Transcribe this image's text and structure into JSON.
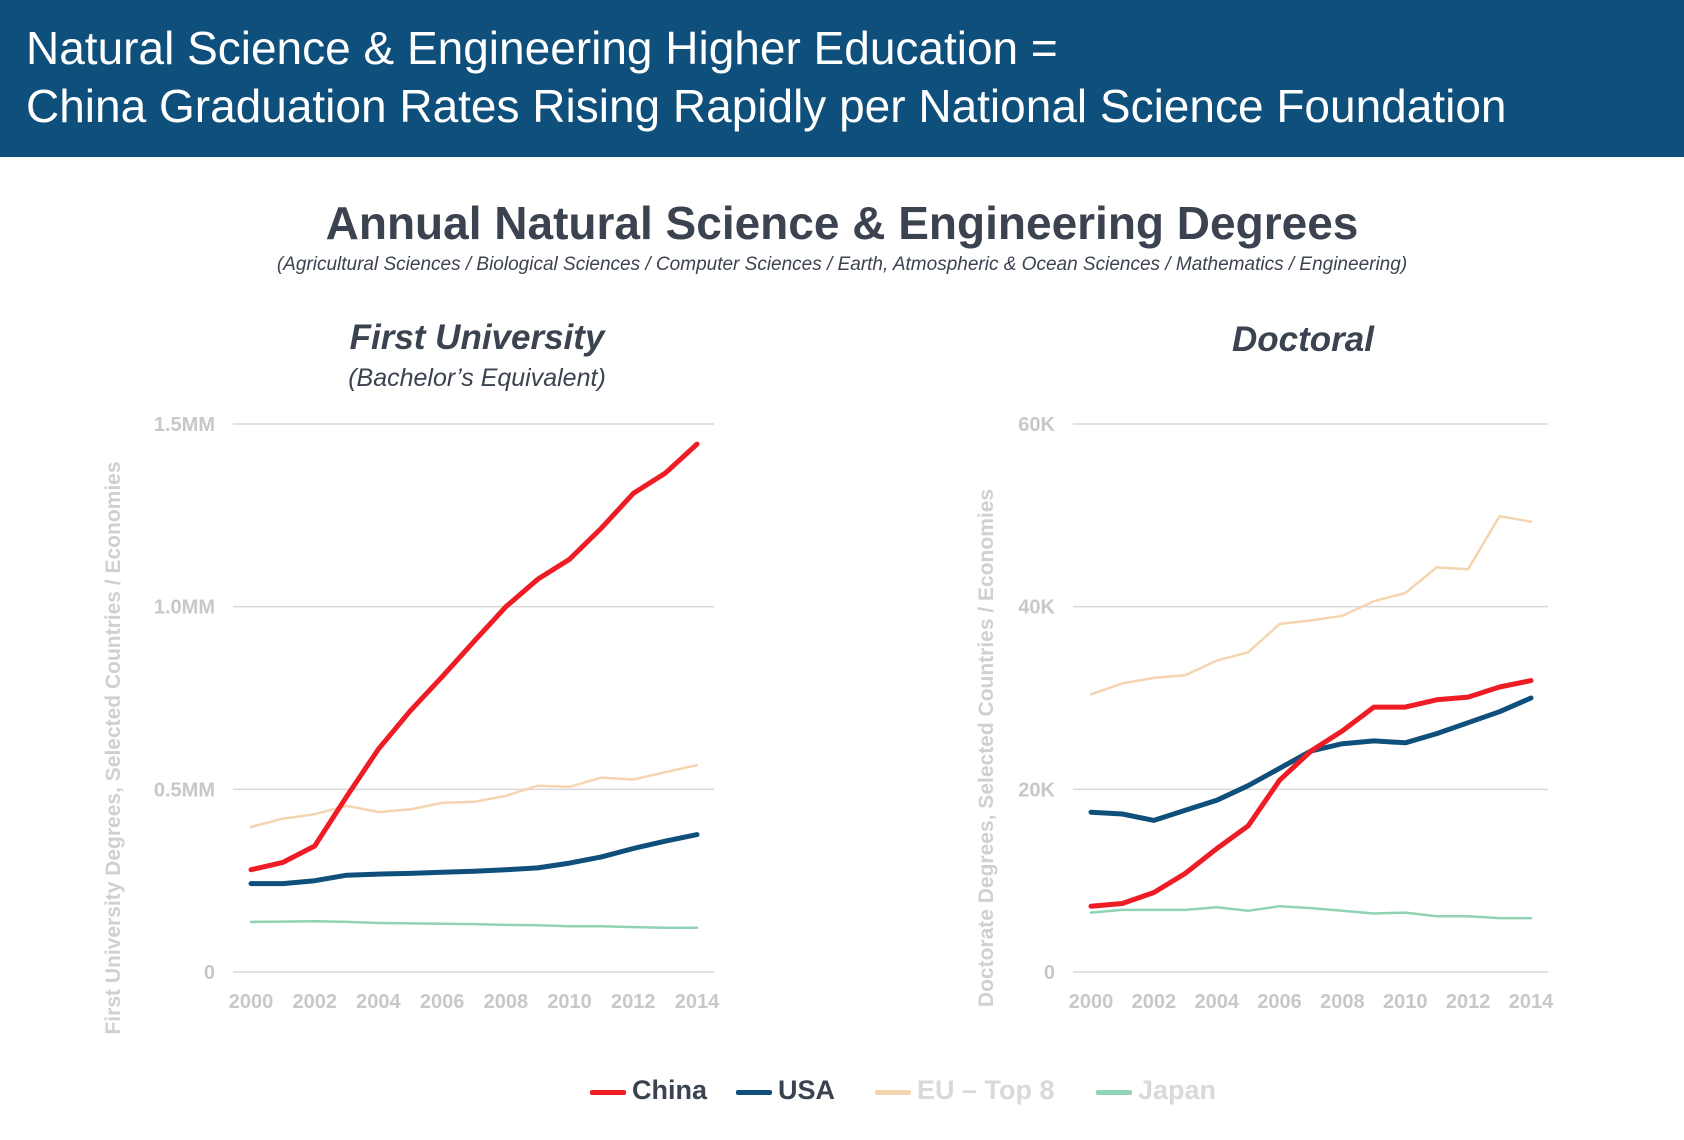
{
  "header": {
    "line1": "Natural Science & Engineering Higher Education =",
    "line2": "China Graduation Rates Rising Rapidly per National Science Foundation"
  },
  "title": "Annual Natural Science & Engineering Degrees",
  "subtitle": "(Agricultural Sciences / Biological Sciences / Computer Sciences / Earth, Atmospheric & Ocean Sciences / Mathematics / Engineering)",
  "colors": {
    "China": "#ee1c24",
    "USA": "#0e4f7b",
    "EU – Top 8": "#f5d5b0",
    "Japan": "#8fd3b4",
    "grid": "#d9d9d9",
    "banner": "#0e4f7b"
  },
  "legend": [
    {
      "name": "China",
      "text_color": "#3b4250"
    },
    {
      "name": "USA",
      "text_color": "#3b4250"
    },
    {
      "name": "EU – Top 8",
      "text_color": "#d9d9d9"
    },
    {
      "name": "Japan",
      "text_color": "#d9d9d9"
    }
  ],
  "chart_data": [
    {
      "type": "line",
      "title": "First University",
      "subtitle": "(Bachelor’s Equivalent)",
      "xlabel": "",
      "ylabel": "First University Degrees, Selected Countries / Economies",
      "x": [
        2000,
        2001,
        2002,
        2003,
        2004,
        2005,
        2006,
        2007,
        2008,
        2009,
        2010,
        2011,
        2012,
        2013,
        2014
      ],
      "xticks": [
        2000,
        2002,
        2004,
        2006,
        2008,
        2010,
        2012,
        2014
      ],
      "ylim": [
        0,
        1500000
      ],
      "yticks": [
        {
          "value": 0,
          "label": "0"
        },
        {
          "value": 500000,
          "label": "0.5MM"
        },
        {
          "value": 1000000,
          "label": "1.0MM"
        },
        {
          "value": 1500000,
          "label": "1.5MM"
        }
      ],
      "grid": true,
      "series": [
        {
          "name": "Japan",
          "values": [
            137000,
            138000,
            139000,
            137000,
            134000,
            133000,
            132000,
            131000,
            129000,
            128000,
            125000,
            125000,
            123000,
            121000,
            121000
          ]
        },
        {
          "name": "EU – Top 8",
          "values": [
            397000,
            420000,
            432000,
            455000,
            438000,
            445000,
            463000,
            466000,
            482000,
            510000,
            507000,
            532000,
            527000,
            547000,
            566000
          ]
        },
        {
          "name": "USA",
          "values": [
            242000,
            242000,
            250000,
            265000,
            268000,
            270000,
            273000,
            276000,
            280000,
            285000,
            298000,
            315000,
            338000,
            358000,
            376000
          ]
        },
        {
          "name": "China",
          "values": [
            280000,
            300000,
            345000,
            480000,
            610000,
            715000,
            808000,
            905000,
            1000000,
            1075000,
            1130000,
            1215000,
            1310000,
            1365000,
            1445000
          ]
        }
      ]
    },
    {
      "type": "line",
      "title": "Doctoral",
      "subtitle": "",
      "xlabel": "",
      "ylabel": "Doctorate Degrees, Selected Countries / Economies",
      "x": [
        2000,
        2001,
        2002,
        2003,
        2004,
        2005,
        2006,
        2007,
        2008,
        2009,
        2010,
        2011,
        2012,
        2013,
        2014
      ],
      "xticks": [
        2000,
        2002,
        2004,
        2006,
        2008,
        2010,
        2012,
        2014
      ],
      "ylim": [
        0,
        60000
      ],
      "yticks": [
        {
          "value": 0,
          "label": "0"
        },
        {
          "value": 20000,
          "label": "20K"
        },
        {
          "value": 40000,
          "label": "40K"
        },
        {
          "value": 60000,
          "label": "60K"
        }
      ],
      "grid": true,
      "series": [
        {
          "name": "Japan",
          "values": [
            6500,
            6800,
            6800,
            6800,
            7100,
            6700,
            7200,
            7000,
            6700,
            6400,
            6500,
            6100,
            6100,
            5900,
            5900
          ]
        },
        {
          "name": "EU – Top 8",
          "values": [
            30400,
            31600,
            32200,
            32500,
            34100,
            35000,
            38100,
            38500,
            39000,
            40600,
            41500,
            44300,
            44100,
            49900,
            49300
          ]
        },
        {
          "name": "USA",
          "values": [
            17500,
            17300,
            16600,
            17700,
            18800,
            20400,
            22300,
            24200,
            25000,
            25300,
            25100,
            26100,
            27300,
            28500,
            30000
          ]
        },
        {
          "name": "China",
          "values": [
            7200,
            7500,
            8700,
            10800,
            13500,
            16000,
            21000,
            24200,
            26400,
            29000,
            29000,
            29800,
            30100,
            31200,
            31900
          ]
        }
      ]
    }
  ]
}
